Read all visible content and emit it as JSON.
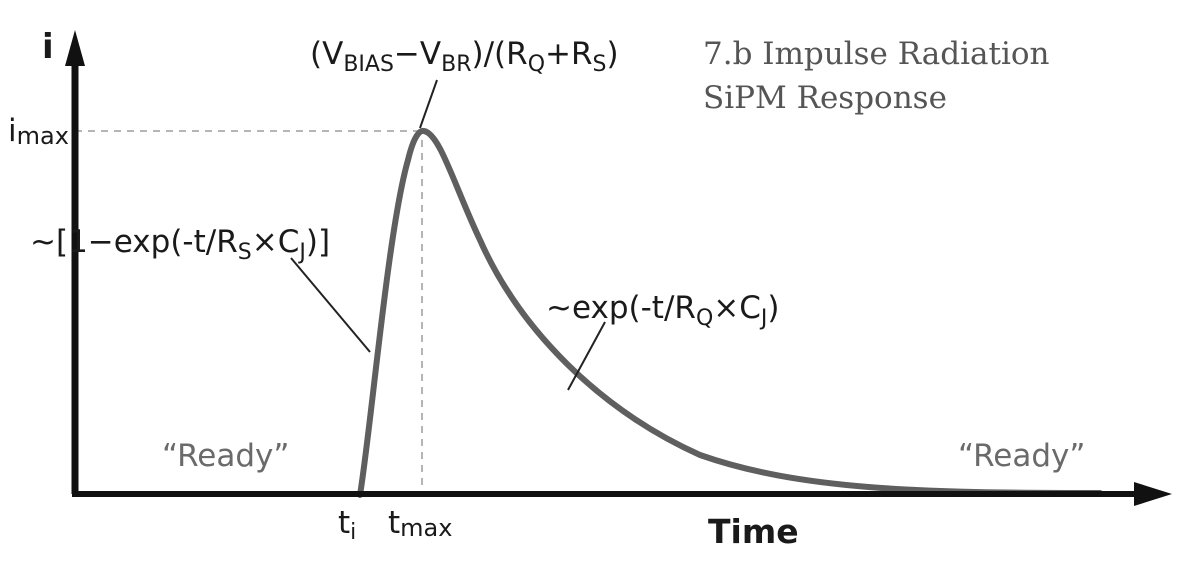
{
  "title": {
    "line1": "7.b Impulse Radiation",
    "line2": "SiPM Response"
  },
  "axes": {
    "y_label": "i",
    "x_label": "Time",
    "imax": {
      "base": "i",
      "sub": "max"
    },
    "ti": {
      "base": "t",
      "sub": "i"
    },
    "tmax": {
      "base": "t",
      "sub": "max"
    }
  },
  "annotations": {
    "peak": {
      "p1": "(V",
      "s1": "BIAS",
      "p2": "−V",
      "s2": "BR",
      "p3": ")/(R",
      "s3": "Q",
      "p4": "+R",
      "s4": "S",
      "p5": ")"
    },
    "rise": {
      "p1": "~[1−exp(-t/R",
      "s1": "S",
      "p2": "×C",
      "s2": "J",
      "p3": ")]"
    },
    "decay": {
      "p1": "~exp(-t/R",
      "s1": "Q",
      "p2": "×C",
      "s2": "J",
      "p3": ")"
    },
    "ready_left": "“Ready”",
    "ready_right": "“Ready”"
  },
  "colors": {
    "curve": "#5f5f5f",
    "axis": "#111111",
    "dashed": "#b5b5b5",
    "leader": "#222222"
  }
}
